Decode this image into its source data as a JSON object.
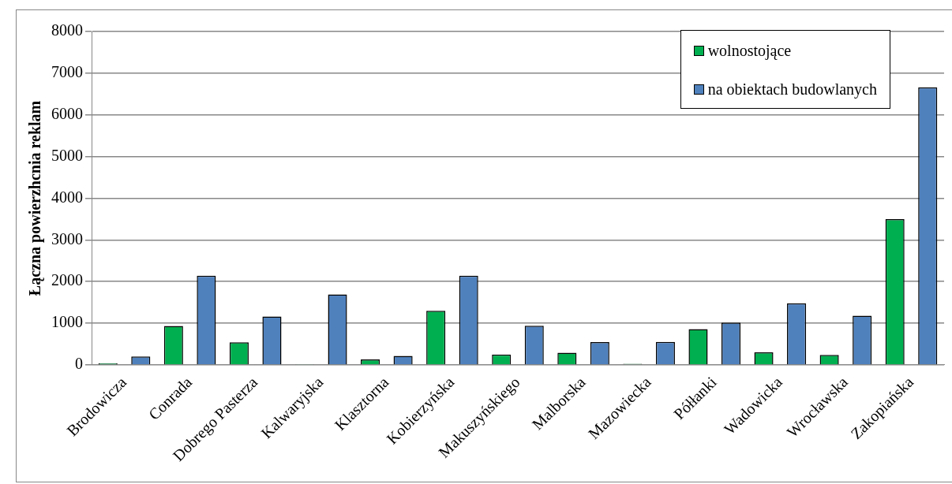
{
  "chart_data": {
    "type": "bar",
    "ylabel": "Łączna powierzhcnia reklam",
    "categories": [
      "Brodowicza",
      "Conrada",
      "Dobrego Pasterza",
      "Kalwaryjska",
      "Klasztorna",
      "Kobierzyńska",
      "Makuszyńskiego",
      "Malborska",
      "Mazowiecka",
      "Półłanki",
      "Wadowicka",
      "Wrocławska",
      "Zakopiańska"
    ],
    "series": [
      {
        "name": "wolnostojące",
        "color": "#00b050",
        "values": [
          40,
          935,
          540,
          15,
          130,
          1300,
          250,
          290,
          25,
          860,
          300,
          240,
          3500
        ]
      },
      {
        "name": "na obiektach budowlanych",
        "color": "#4f81bd",
        "values": [
          200,
          2140,
          1160,
          1690,
          215,
          2140,
          940,
          545,
          550,
          1015,
          1480,
          1180,
          6660
        ]
      }
    ],
    "ylim": [
      0,
      8000
    ],
    "yticks": [
      0,
      1000,
      2000,
      3000,
      4000,
      5000,
      6000,
      7000,
      8000
    ],
    "grid": "y",
    "legend": "top right"
  }
}
